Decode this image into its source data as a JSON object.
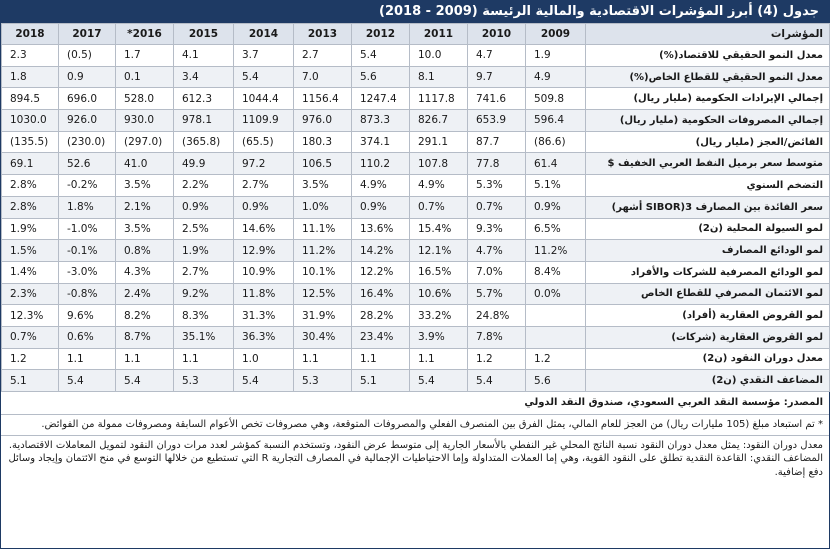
{
  "title": "جدول (4) أبرز المؤشرات الاقتصادية والمالية الرئيسة (2009 - 2018)",
  "indicator_header": "المؤشرات",
  "years": [
    "2009",
    "2010",
    "2011",
    "2012",
    "2013",
    "2014",
    "2015",
    "*2016",
    "2017",
    "2018"
  ],
  "rows": [
    {
      "label": "معدل النمو الحقيقي للاقتصاد(%)",
      "values": [
        "1.9",
        "4.7",
        "10.0",
        "5.4",
        "2.7",
        "3.7",
        "4.1",
        "1.7",
        "(0.5)",
        "2.3"
      ]
    },
    {
      "label": "معدل النمو الحقيقي للقطاع الخاص(%)",
      "values": [
        "4.9",
        "9.7",
        "8.1",
        "5.6",
        "7.0",
        "5.4",
        "3.4",
        "0.1",
        "0.9",
        "1.8"
      ]
    },
    {
      "label": "إجمالي الإيرادات الحكومية (مليار ريال)",
      "values": [
        "509.8",
        "741.6",
        "1117.8",
        "1247.4",
        "1156.4",
        "1044.4",
        "612.3",
        "528.0",
        "696.0",
        "894.5"
      ]
    },
    {
      "label": "إجمالي المصروفات الحكومية (مليار ريال)",
      "values": [
        "596.4",
        "653.9",
        "826.7",
        "873.3",
        "976.0",
        "1109.9",
        "978.1",
        "930.0",
        "926.0",
        "1030.0"
      ]
    },
    {
      "label": "الفائض/العجز (مليار ريال)",
      "values": [
        "(86.6)",
        "87.7",
        "291.1",
        "374.1",
        "180.3",
        "(65.5)",
        "(365.8)",
        "(297.0)",
        "(230.0)",
        "(135.5)"
      ]
    },
    {
      "label": "متوسط سعر برميل النفط العربي الخفيف $",
      "values": [
        "61.4",
        "77.8",
        "107.8",
        "110.2",
        "106.5",
        "97.2",
        "49.9",
        "41.0",
        "52.6",
        "69.1"
      ]
    },
    {
      "label": "التضخم السنوي",
      "values": [
        "5.1%",
        "5.3%",
        "4.9%",
        "4.9%",
        "3.5%",
        "2.7%",
        "2.2%",
        "3.5%",
        "-0.2%",
        "2.8%"
      ]
    },
    {
      "label": "سعر الفائدة بين المصارف 3(SIBOR أشهر)",
      "values": [
        "0.9%",
        "0.7%",
        "0.7%",
        "0.9%",
        "1.0%",
        "0.9%",
        "0.9%",
        "2.1%",
        "1.8%",
        "2.8%"
      ]
    },
    {
      "label": "لمو السيولة المحلية (ن2)",
      "values": [
        "6.5%",
        "9.3%",
        "15.4%",
        "13.6%",
        "11.1%",
        "14.6%",
        "2.5%",
        "3.5%",
        "-1.0%",
        "1.9%"
      ]
    },
    {
      "label": "لمو الودائع المصارف",
      "values": [
        "11.2%",
        "4.7%",
        "12.1%",
        "14.2%",
        "11.2%",
        "12.9%",
        "1.9%",
        "0.8%",
        "-0.1%",
        "1.5%"
      ]
    },
    {
      "label": "لمو الودائع المصرفية للشركات والأفراد",
      "values": [
        "8.4%",
        "7.0%",
        "16.5%",
        "12.2%",
        "10.1%",
        "10.9%",
        "2.7%",
        "4.3%",
        "-3.0%",
        "1.4%"
      ]
    },
    {
      "label": "لمو الائتمان المصرفي للقطاع الخاص",
      "values": [
        "0.0%",
        "5.7%",
        "10.6%",
        "16.4%",
        "12.5%",
        "11.8%",
        "9.2%",
        "2.4%",
        "-0.8%",
        "2.3%"
      ]
    },
    {
      "label": "لمو القروض العقارية (أفراد)",
      "values": [
        "",
        "24.8%",
        "33.2%",
        "28.2%",
        "31.9%",
        "31.3%",
        "8.3%",
        "8.2%",
        "9.6%",
        "12.3%"
      ]
    },
    {
      "label": "لمو القروض العقارية (شركات)",
      "values": [
        "",
        "7.8%",
        "3.9%",
        "23.4%",
        "30.4%",
        "36.3%",
        "35.1%",
        "8.7%",
        "0.6%",
        "0.7%"
      ]
    },
    {
      "label": "معدل دوران النقود (ن2)",
      "values": [
        "1.2",
        "1.2",
        "1.1",
        "1.1",
        "1.1",
        "1.0",
        "1.1",
        "1.1",
        "1.1",
        "1.2"
      ]
    },
    {
      "label": "المضاعف النقدي (ن2)",
      "values": [
        "5.6",
        "5.4",
        "5.4",
        "5.1",
        "5.3",
        "5.4",
        "5.3",
        "5.4",
        "5.4",
        "5.1"
      ]
    }
  ],
  "source": "المصدر: مؤسسة النقد العربي السعودي، صندوق النقد الدولي",
  "note1": "* تم استبعاد مبلغ (105 مليارات ريال) من العجز للعام المالي، يمثل الفرق بين المنصرف الفعلي والمصروفات المتوقعة، وهي مصروفات تخص الأعوام السابقة ومصروفات ممولة من الفوائض.",
  "note2": "معدل دوران النقود: يمثل معدل دوران النقود نسبة الناتج المحلي غير النفطي بالأسعار الجارية إلى متوسط عرض النقود، وتستخدم النسبة كمؤشر لعدد مرات دوران النقود لتمويل المعاملات الاقتصادية. المضاعف النقدي: القاعدة النقدية تطلق على النقود القوية، وهي إما العملات المتداولة وإما الاحتياطيات الإجمالية في المصارف التجارية R التي تستطيع من خلالها التوسع في منح الائتمان وإيجاد وسائل دفع إضافية."
}
